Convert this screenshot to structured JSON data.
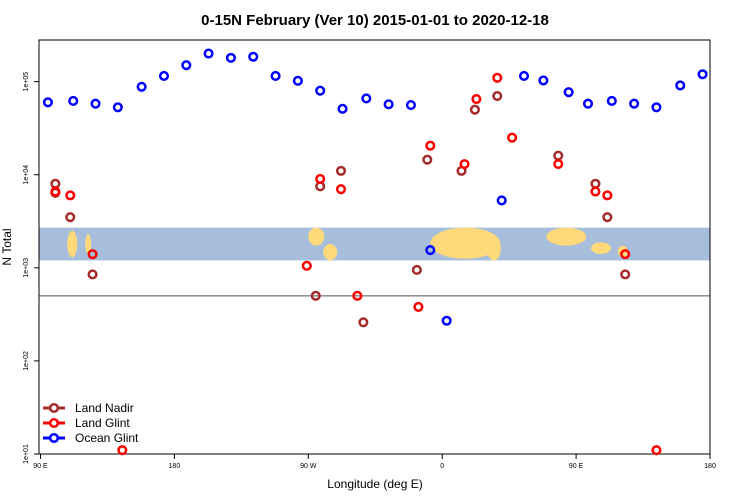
{
  "chart_data": {
    "type": "scatter",
    "title": "0-15N February (Ver 10)   2015-01-01 to 2020-12-18",
    "xlabel": "Longitude (deg E)",
    "ylabel": "N Total",
    "y_scale": "log",
    "ylim": [
      10,
      280000
    ],
    "x_ticks": [
      {
        "label": "90 E",
        "value": 0
      },
      {
        "label": "180",
        "value": 90
      },
      {
        "label": "90 W",
        "value": 180
      },
      {
        "label": "0",
        "value": 270
      },
      {
        "label": "90 E",
        "value": 360
      },
      {
        "label": "180",
        "value": 450
      }
    ],
    "y_ticks": [
      {
        "label": "1e+01",
        "value": 10
      },
      {
        "label": "1e+02",
        "value": 100
      },
      {
        "label": "1e+03",
        "value": 1000
      },
      {
        "label": "1e+04",
        "value": 10000
      },
      {
        "label": "1e+05",
        "value": 100000
      }
    ],
    "xlim": [
      -1,
      450
    ],
    "reference_line": 500,
    "map_strip": {
      "y_top": 2700,
      "y_bottom": 1200,
      "ocean_color": "#a6bddb",
      "land_color": "#ffd97a"
    },
    "legend_position": "bottom-left",
    "series": [
      {
        "name": "Land Nadir",
        "color": "#a52a2a",
        "points": [
          [
            10,
            8000
          ],
          [
            10,
            6400
          ],
          [
            20,
            3500
          ],
          [
            35,
            850
          ],
          [
            185,
            500
          ],
          [
            188,
            7500
          ],
          [
            202,
            11000
          ],
          [
            217,
            260
          ],
          [
            253,
            950
          ],
          [
            260,
            14500
          ],
          [
            283,
            11000
          ],
          [
            292,
            50000
          ],
          [
            307,
            70000
          ],
          [
            348,
            16000
          ],
          [
            373,
            8000
          ],
          [
            381,
            3500
          ],
          [
            393,
            850
          ]
        ]
      },
      {
        "name": "Land Glint",
        "color": "#ff0000",
        "points": [
          [
            10,
            6600
          ],
          [
            20,
            6000
          ],
          [
            35,
            1400
          ],
          [
            55,
            11
          ],
          [
            179,
            1050
          ],
          [
            188,
            9000
          ],
          [
            202,
            7000
          ],
          [
            213,
            500
          ],
          [
            254,
            380
          ],
          [
            262,
            20500
          ],
          [
            285,
            13000
          ],
          [
            293,
            65000
          ],
          [
            307,
            110000
          ],
          [
            317,
            25000
          ],
          [
            348,
            13000
          ],
          [
            373,
            6600
          ],
          [
            381,
            6000
          ],
          [
            393,
            1400
          ],
          [
            414,
            11
          ]
        ]
      },
      {
        "name": "Ocean Glint",
        "color": "#0000ff",
        "points": [
          [
            5,
            60000
          ],
          [
            22,
            62000
          ],
          [
            37,
            58000
          ],
          [
            52,
            53000
          ],
          [
            68,
            88000
          ],
          [
            83,
            115000
          ],
          [
            98,
            150000
          ],
          [
            113,
            200000
          ],
          [
            128,
            180000
          ],
          [
            143,
            185000
          ],
          [
            158,
            115000
          ],
          [
            173,
            102000
          ],
          [
            188,
            80000
          ],
          [
            203,
            51000
          ],
          [
            219,
            66000
          ],
          [
            234,
            57000
          ],
          [
            249,
            56000
          ],
          [
            262,
            1550
          ],
          [
            273,
            270
          ],
          [
            310,
            5300
          ],
          [
            325,
            115000
          ],
          [
            338,
            103000
          ],
          [
            355,
            77000
          ],
          [
            368,
            58000
          ],
          [
            384,
            62000
          ],
          [
            399,
            58000
          ],
          [
            414,
            53000
          ],
          [
            430,
            91000
          ],
          [
            445,
            120000
          ]
        ]
      }
    ]
  }
}
